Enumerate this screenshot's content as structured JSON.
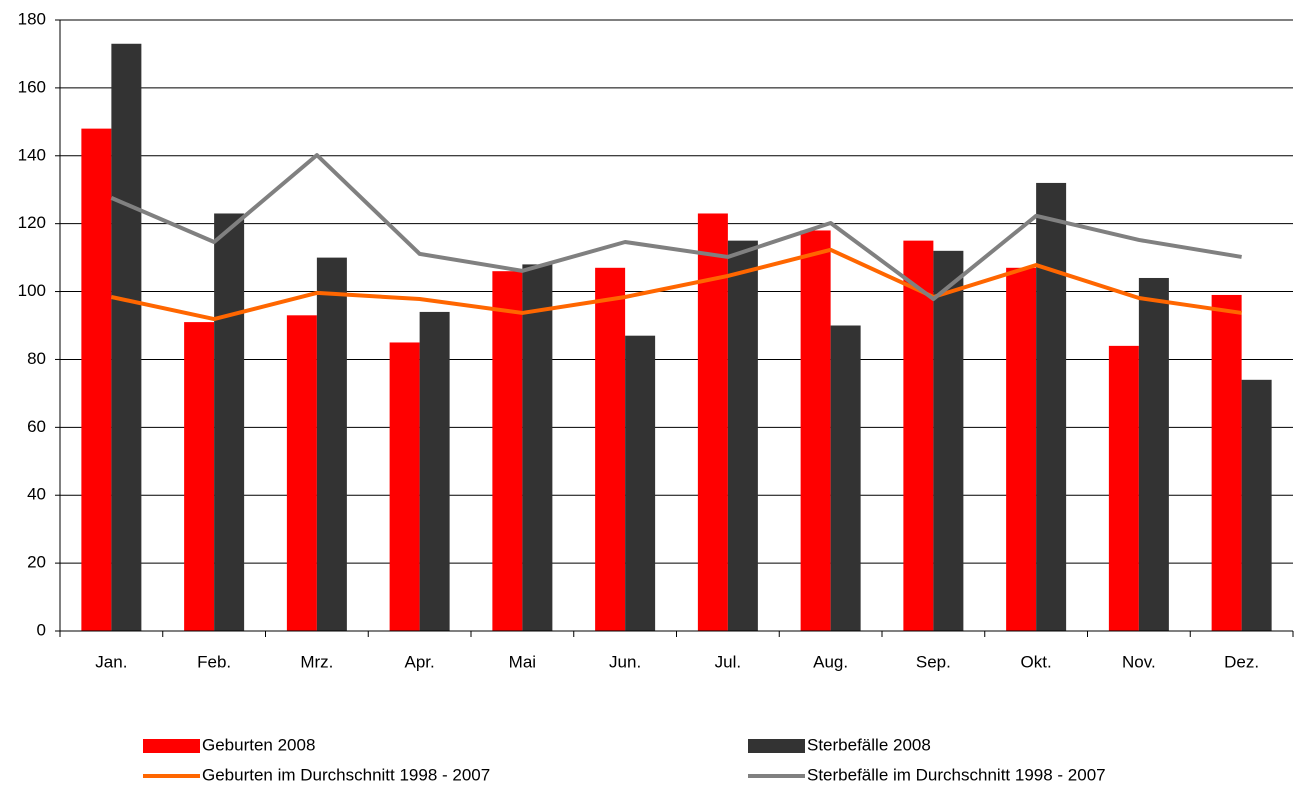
{
  "chart_data": {
    "type": "bar",
    "categories": [
      "Jan.",
      "Feb.",
      "Mrz.",
      "Apr.",
      "Mai",
      "Jun.",
      "Jul.",
      "Aug.",
      "Sep.",
      "Okt.",
      "Nov.",
      "Dez."
    ],
    "series": [
      {
        "name": "Geburten 2008",
        "type": "bar",
        "color": "#ff0000",
        "values": [
          148,
          91,
          93,
          85,
          106,
          107,
          123,
          118,
          115,
          107,
          84,
          99
        ]
      },
      {
        "name": "Sterbefälle 2008",
        "type": "bar",
        "color": "#333333",
        "values": [
          173,
          123,
          110,
          94,
          108,
          87,
          115,
          90,
          112,
          132,
          104,
          74
        ]
      },
      {
        "name": "Geburten im Durchschnitt 1998 - 2007",
        "type": "line",
        "color": "#ff6600",
        "values": [
          98.4,
          91.9,
          99.6,
          97.8,
          93.7,
          98.4,
          104.6,
          112.3,
          98.4,
          107.8,
          98.1,
          93.7
        ]
      },
      {
        "name": "Sterbefälle im Durchschnitt 1998 - 2007",
        "type": "line",
        "color": "#808080",
        "values": [
          127.6,
          114.6,
          140.2,
          111.1,
          106.1,
          114.6,
          110.2,
          120.2,
          97.8,
          122.3,
          115.2,
          110.2
        ]
      }
    ],
    "ylim": [
      0,
      180
    ],
    "yticks": [
      0,
      20,
      40,
      60,
      80,
      100,
      120,
      140,
      160,
      180
    ],
    "grid": true
  }
}
